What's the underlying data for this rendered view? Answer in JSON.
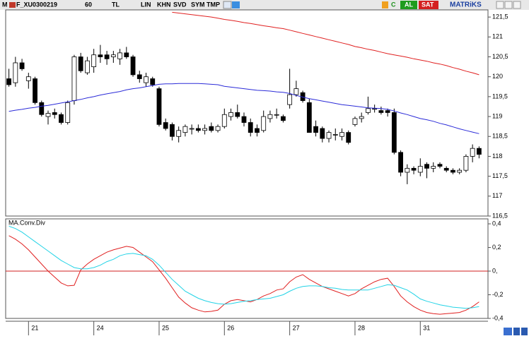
{
  "toolbar": {
    "logo": "M",
    "symbol": "F_XU0300219",
    "period": "60",
    "currency": "TL",
    "scale": "LIN",
    "buttons": [
      "KHN",
      "SVD",
      "SYM",
      "TMP"
    ],
    "c": "C",
    "buy": "AL",
    "sell": "SAT",
    "brand": "MATRiKS"
  },
  "chart_data": [
    {
      "type": "candlestick",
      "categories": [
        null,
        null,
        null,
        "21",
        null,
        null,
        null,
        null,
        null,
        null,
        null,
        null,
        null,
        "24",
        null,
        null,
        null,
        null,
        null,
        null,
        null,
        null,
        null,
        "25",
        null,
        null,
        null,
        null,
        null,
        null,
        null,
        null,
        null,
        "26",
        null,
        null,
        null,
        null,
        null,
        null,
        null,
        null,
        null,
        "27",
        null,
        null,
        null,
        null,
        null,
        null,
        null,
        null,
        null,
        "28",
        null,
        null,
        null,
        null,
        null,
        null,
        null,
        null,
        null,
        "31",
        null,
        null,
        null,
        null,
        null,
        null,
        null,
        null,
        null
      ],
      "open": [
        119.95,
        119.85,
        120.35,
        119.9,
        119.95,
        119.35,
        119.0,
        119.1,
        119.05,
        118.85,
        119.4,
        120.5,
        120.1,
        120.25,
        120.55,
        120.55,
        120.5,
        120.45,
        120.6,
        120.5,
        120.05,
        119.85,
        119.95,
        119.7,
        118.85,
        118.8,
        118.5,
        118.6,
        118.7,
        118.7,
        118.65,
        118.75,
        118.65,
        118.75,
        119.0,
        119.1,
        119.0,
        118.85,
        118.7,
        118.65,
        118.95,
        119.05,
        119.0,
        119.3,
        119.55,
        119.6,
        119.35,
        118.75,
        118.7,
        118.45,
        118.55,
        118.5,
        118.6,
        118.8,
        118.95,
        119.1,
        119.2,
        119.15,
        119.15,
        119.1,
        118.1,
        117.6,
        117.7,
        117.6,
        117.8,
        117.7,
        117.8,
        117.7,
        117.65,
        117.6,
        117.65,
        118.0,
        118.2
      ],
      "high": [
        120.2,
        120.5,
        120.45,
        120.1,
        120.0,
        119.4,
        119.15,
        119.2,
        119.1,
        119.4,
        120.55,
        120.6,
        120.5,
        120.7,
        120.8,
        120.65,
        120.65,
        120.7,
        120.75,
        120.55,
        120.15,
        120.1,
        120.0,
        119.75,
        118.95,
        118.85,
        118.75,
        118.8,
        118.8,
        118.8,
        118.8,
        118.85,
        118.8,
        119.2,
        119.2,
        119.3,
        119.1,
        118.95,
        118.8,
        119.15,
        119.15,
        119.2,
        119.05,
        120.2,
        119.9,
        119.65,
        119.45,
        118.9,
        118.75,
        118.65,
        118.7,
        118.7,
        118.65,
        119.0,
        119.1,
        119.5,
        119.3,
        119.25,
        119.2,
        119.2,
        118.15,
        117.8,
        117.75,
        117.95,
        117.85,
        117.85,
        117.85,
        117.75,
        117.7,
        117.7,
        118.05,
        118.3,
        118.25
      ],
      "low": [
        119.75,
        119.75,
        120.15,
        119.7,
        119.3,
        119.0,
        118.8,
        118.95,
        118.8,
        118.8,
        119.3,
        120.1,
        120.05,
        120.1,
        120.35,
        120.3,
        120.35,
        120.3,
        120.45,
        120.0,
        119.85,
        119.75,
        119.75,
        118.75,
        118.65,
        118.4,
        118.35,
        118.5,
        118.55,
        118.6,
        118.55,
        118.6,
        118.6,
        118.7,
        118.9,
        118.95,
        118.75,
        118.5,
        118.5,
        118.6,
        118.85,
        118.95,
        118.85,
        119.2,
        119.5,
        119.35,
        118.6,
        118.5,
        118.35,
        118.35,
        118.4,
        118.4,
        118.3,
        118.75,
        118.85,
        119.05,
        119.1,
        119.05,
        119.0,
        118.05,
        117.5,
        117.3,
        117.55,
        117.5,
        117.45,
        117.6,
        117.7,
        117.6,
        117.55,
        117.55,
        117.6,
        117.85,
        117.95
      ],
      "close": [
        119.8,
        120.35,
        120.2,
        120.0,
        119.35,
        119.05,
        119.08,
        119.05,
        118.85,
        119.35,
        120.5,
        120.15,
        120.4,
        120.55,
        120.5,
        120.45,
        120.55,
        120.6,
        120.5,
        120.05,
        119.95,
        120.0,
        119.8,
        118.8,
        118.7,
        118.5,
        118.65,
        118.75,
        118.7,
        118.65,
        118.7,
        118.65,
        118.75,
        119.05,
        119.1,
        119.0,
        118.85,
        118.6,
        118.6,
        119.0,
        119.05,
        119.05,
        118.9,
        119.55,
        119.7,
        119.4,
        118.6,
        118.6,
        118.45,
        118.6,
        118.55,
        118.6,
        118.35,
        118.95,
        119.0,
        119.2,
        119.2,
        119.1,
        119.1,
        118.1,
        117.6,
        117.7,
        117.65,
        117.75,
        117.7,
        117.75,
        117.75,
        117.65,
        117.6,
        117.65,
        118.0,
        118.2,
        118.05
      ],
      "up_color": "#ffffff",
      "down_color": "#000000",
      "series": [
        {
          "color": "#2b2bd8",
          "values": [
            119.13,
            119.16,
            119.18,
            119.21,
            119.23,
            119.26,
            119.28,
            119.31,
            119.34,
            119.37,
            119.4,
            119.43,
            119.47,
            119.5,
            119.54,
            119.57,
            119.6,
            119.63,
            119.67,
            119.7,
            119.72,
            119.75,
            119.78,
            119.81,
            119.82,
            119.82,
            119.83,
            119.83,
            119.83,
            119.83,
            119.82,
            119.81,
            119.8,
            119.76,
            119.74,
            119.72,
            119.7,
            119.68,
            119.66,
            119.65,
            119.64,
            119.62,
            119.61,
            119.58,
            119.53,
            119.49,
            119.45,
            119.42,
            119.39,
            119.36,
            119.33,
            119.3,
            119.28,
            119.26,
            119.24,
            119.22,
            119.21,
            119.2,
            119.18,
            119.14,
            119.09,
            119.05,
            119.0,
            118.95,
            118.92,
            118.88,
            118.83,
            118.79,
            118.74,
            118.69,
            118.65,
            118.61,
            118.57
          ]
        },
        {
          "color": "#e02020",
          "values": [
            null,
            null,
            null,
            null,
            null,
            null,
            null,
            null,
            null,
            null,
            null,
            null,
            null,
            null,
            null,
            null,
            null,
            null,
            null,
            null,
            null,
            null,
            null,
            null,
            null,
            121.62,
            121.6,
            121.58,
            121.56,
            121.54,
            121.52,
            121.5,
            121.47,
            121.44,
            121.42,
            121.39,
            121.36,
            121.34,
            121.31,
            121.28,
            121.26,
            121.23,
            121.21,
            121.17,
            121.13,
            121.09,
            121.05,
            121.01,
            120.97,
            120.93,
            120.89,
            120.85,
            120.81,
            120.76,
            120.73,
            120.69,
            120.66,
            120.62,
            120.58,
            120.55,
            120.52,
            120.49,
            120.45,
            120.42,
            120.39,
            120.35,
            120.32,
            120.28,
            120.23,
            120.19,
            120.14,
            120.1,
            120.05
          ]
        }
      ],
      "ylim": [
        116.5,
        121.68
      ],
      "yticks": [
        {
          "value": 121.5,
          "label": "121,5"
        },
        121,
        {
          "value": 120.5,
          "label": "120,5"
        },
        120,
        {
          "value": 119.5,
          "label": "119,5"
        },
        119,
        {
          "value": 118.5,
          "label": "118,5"
        },
        118,
        {
          "value": 117.5,
          "label": "117,5"
        },
        117,
        {
          "value": 116.5,
          "label": "116,5"
        }
      ]
    },
    {
      "type": "line",
      "title": "MA.Conv.Div",
      "series": [
        {
          "color": "#e02020",
          "values": [
            0.3,
            0.27,
            0.23,
            0.18,
            0.12,
            0.06,
            0.0,
            -0.05,
            -0.1,
            -0.125,
            -0.12,
            0.01,
            0.06,
            0.1,
            0.13,
            0.16,
            0.18,
            0.195,
            0.21,
            0.2,
            0.16,
            0.12,
            0.08,
            0.01,
            -0.06,
            -0.14,
            -0.22,
            -0.27,
            -0.31,
            -0.33,
            -0.345,
            -0.34,
            -0.33,
            -0.28,
            -0.25,
            -0.24,
            -0.25,
            -0.26,
            -0.24,
            -0.21,
            -0.19,
            -0.16,
            -0.15,
            -0.09,
            -0.05,
            -0.03,
            -0.07,
            -0.1,
            -0.13,
            -0.15,
            -0.17,
            -0.19,
            -0.21,
            -0.19,
            -0.15,
            -0.12,
            -0.09,
            -0.07,
            -0.06,
            -0.13,
            -0.21,
            -0.26,
            -0.3,
            -0.33,
            -0.35,
            -0.36,
            -0.365,
            -0.36,
            -0.355,
            -0.35,
            -0.33,
            -0.3,
            -0.26
          ]
        },
        {
          "color": "#22d3e6",
          "values": [
            0.38,
            0.36,
            0.33,
            0.29,
            0.25,
            0.21,
            0.17,
            0.13,
            0.09,
            0.06,
            0.03,
            0.02,
            0.02,
            0.03,
            0.05,
            0.08,
            0.1,
            0.13,
            0.145,
            0.15,
            0.14,
            0.13,
            0.1,
            0.05,
            -0.01,
            -0.07,
            -0.12,
            -0.17,
            -0.2,
            -0.23,
            -0.25,
            -0.265,
            -0.275,
            -0.28,
            -0.275,
            -0.265,
            -0.255,
            -0.25,
            -0.24,
            -0.235,
            -0.23,
            -0.215,
            -0.2,
            -0.17,
            -0.145,
            -0.13,
            -0.125,
            -0.125,
            -0.13,
            -0.14,
            -0.145,
            -0.155,
            -0.16,
            -0.16,
            -0.16,
            -0.16,
            -0.145,
            -0.13,
            -0.115,
            -0.12,
            -0.14,
            -0.16,
            -0.195,
            -0.235,
            -0.255,
            -0.27,
            -0.285,
            -0.295,
            -0.305,
            -0.31,
            -0.315,
            -0.31,
            -0.3
          ]
        }
      ],
      "refline": 0,
      "refline_color": "#d02020",
      "ylim": [
        -0.4,
        0.442
      ],
      "yticks": [
        {
          "value": 0.4,
          "label": "0,4"
        },
        {
          "value": 0.2,
          "label": "0,2"
        },
        {
          "value": 0,
          "label": "0,"
        },
        {
          "value": -0.2,
          "label": "-0,2"
        },
        {
          "value": -0.4,
          "label": "-0,4"
        }
      ]
    }
  ]
}
